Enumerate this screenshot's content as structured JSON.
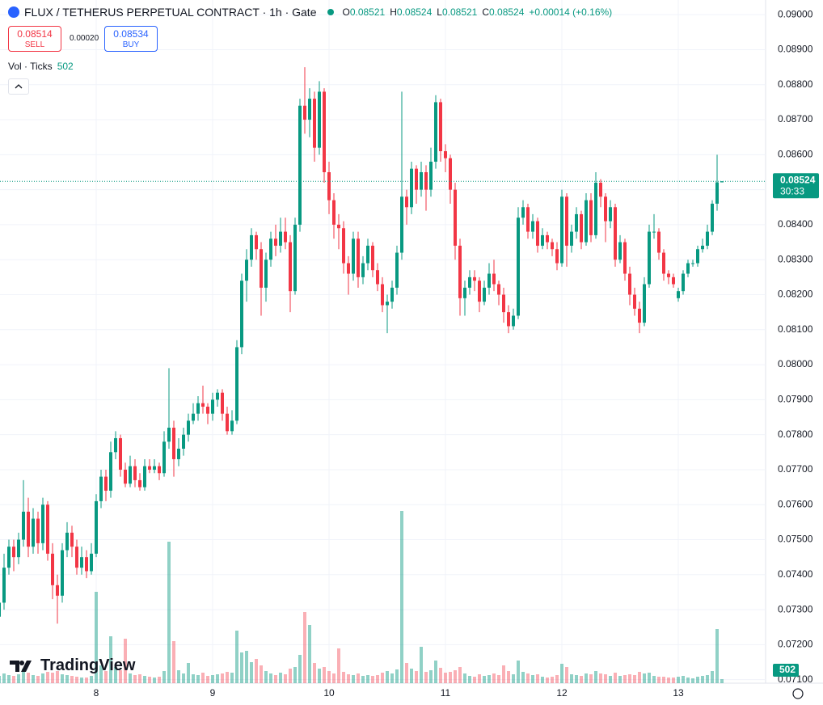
{
  "chart_data": {
    "type": "candlestick",
    "title": "FLUX / TETHERUS PERPETUAL CONTRACT · 1h · Gate",
    "ohlc_labels": [
      "O",
      "H",
      "L",
      "C"
    ],
    "change": "+0.00014 (+0.16%)",
    "sell": {
      "price": 0.08514,
      "label": "SELL"
    },
    "spread": "0.00020",
    "buy": {
      "price": 0.08534,
      "label": "BUY"
    },
    "volume_label": "Vol · Ticks",
    "countdown": "30:33",
    "brand": "TradingView",
    "colors": {
      "up": "#089981",
      "down": "#f23645",
      "up_volume": "rgba(8,153,129,0.45)",
      "down_volume": "rgba(242,54,69,0.4)"
    },
    "grid": true,
    "ylim": [
      0.0709,
      0.09042
    ],
    "yticks": [
      {
        "value": 0.071,
        "label": "0.07100"
      },
      {
        "value": 0.072,
        "label": "0.07200"
      },
      {
        "value": 0.073,
        "label": "0.07300"
      },
      {
        "value": 0.074,
        "label": "0.07400"
      },
      {
        "value": 0.075,
        "label": "0.07500"
      },
      {
        "value": 0.076,
        "label": "0.07600"
      },
      {
        "value": 0.077,
        "label": "0.07700"
      },
      {
        "value": 0.078,
        "label": "0.07800"
      },
      {
        "value": 0.079,
        "label": "0.07900"
      },
      {
        "value": 0.08,
        "label": "0.08000"
      },
      {
        "value": 0.081,
        "label": "0.08100"
      },
      {
        "value": 0.082,
        "label": "0.08200"
      },
      {
        "value": 0.083,
        "label": "0.08300"
      },
      {
        "value": 0.084,
        "label": "0.08400"
      },
      {
        "value": 0.085,
        "label": "0.08500"
      },
      {
        "value": 0.086,
        "label": "0.08600"
      },
      {
        "value": 0.087,
        "label": "0.08700"
      },
      {
        "value": 0.088,
        "label": "0.08800"
      },
      {
        "value": 0.089,
        "label": "0.08900"
      },
      {
        "value": 0.09,
        "label": "0.09000"
      }
    ],
    "xticks": [
      {
        "value": 20,
        "label": "8"
      },
      {
        "value": 44,
        "label": "9"
      },
      {
        "value": 68,
        "label": "10"
      },
      {
        "value": 92,
        "label": "11"
      },
      {
        "value": 116,
        "label": "12"
      },
      {
        "value": 140,
        "label": "13"
      }
    ],
    "candles": [
      [
        0.0728,
        0.0735,
        0.0725,
        0.0732,
        900
      ],
      [
        0.0732,
        0.0746,
        0.073,
        0.0742,
        1200
      ],
      [
        0.0742,
        0.075,
        0.074,
        0.0748,
        1000
      ],
      [
        0.0748,
        0.075,
        0.0741,
        0.0745,
        900
      ],
      [
        0.0745,
        0.0752,
        0.0743,
        0.075,
        1100
      ],
      [
        0.075,
        0.0767,
        0.0748,
        0.0758,
        1800
      ],
      [
        0.0758,
        0.0762,
        0.0745,
        0.0748,
        1300
      ],
      [
        0.0748,
        0.0759,
        0.0746,
        0.0756,
        1000
      ],
      [
        0.0756,
        0.0758,
        0.0746,
        0.0749,
        900
      ],
      [
        0.0749,
        0.0762,
        0.0747,
        0.076,
        1200
      ],
      [
        0.076,
        0.0761,
        0.0744,
        0.0746,
        1400
      ],
      [
        0.0746,
        0.0749,
        0.0733,
        0.0737,
        1300
      ],
      [
        0.0737,
        0.074,
        0.0726,
        0.0734,
        1500
      ],
      [
        0.0734,
        0.0749,
        0.0732,
        0.0747,
        1100
      ],
      [
        0.0747,
        0.0755,
        0.0745,
        0.0752,
        1000
      ],
      [
        0.0752,
        0.0754,
        0.0745,
        0.0748,
        900
      ],
      [
        0.0748,
        0.075,
        0.074,
        0.0742,
        800
      ],
      [
        0.0742,
        0.0748,
        0.074,
        0.0745,
        700
      ],
      [
        0.0745,
        0.0747,
        0.0739,
        0.0741,
        700
      ],
      [
        0.0741,
        0.0749,
        0.074,
        0.0746,
        900
      ],
      [
        0.0746,
        0.0763,
        0.0745,
        0.0761,
        11300
      ],
      [
        0.0761,
        0.077,
        0.0759,
        0.0768,
        2200
      ],
      [
        0.0768,
        0.077,
        0.0761,
        0.0764,
        1500
      ],
      [
        0.0764,
        0.0778,
        0.0762,
        0.0775,
        5800
      ],
      [
        0.0775,
        0.0781,
        0.0773,
        0.0779,
        2000
      ],
      [
        0.0779,
        0.078,
        0.0768,
        0.077,
        1600
      ],
      [
        0.077,
        0.0772,
        0.0765,
        0.0766,
        5500
      ],
      [
        0.0766,
        0.0774,
        0.0765,
        0.0771,
        1200
      ],
      [
        0.0771,
        0.0773,
        0.0765,
        0.0767,
        1000
      ],
      [
        0.0767,
        0.0769,
        0.0764,
        0.0765,
        1100
      ],
      [
        0.0765,
        0.0773,
        0.0764,
        0.0771,
        900
      ],
      [
        0.0771,
        0.0773,
        0.0769,
        0.077,
        800
      ],
      [
        0.077,
        0.0773,
        0.0769,
        0.0771,
        700
      ],
      [
        0.0771,
        0.0772,
        0.0767,
        0.0769,
        800
      ],
      [
        0.0769,
        0.0781,
        0.0768,
        0.0778,
        1500
      ],
      [
        0.0778,
        0.0799,
        0.0776,
        0.0782,
        17500
      ],
      [
        0.0782,
        0.0784,
        0.0768,
        0.0773,
        5200
      ],
      [
        0.0773,
        0.0779,
        0.0771,
        0.0776,
        1600
      ],
      [
        0.0776,
        0.0782,
        0.0774,
        0.078,
        1200
      ],
      [
        0.078,
        0.0786,
        0.0778,
        0.0784,
        2500
      ],
      [
        0.0784,
        0.0789,
        0.0783,
        0.0786,
        1100
      ],
      [
        0.0786,
        0.0791,
        0.0784,
        0.0789,
        1000
      ],
      [
        0.0789,
        0.0794,
        0.0786,
        0.0788,
        1300
      ],
      [
        0.0788,
        0.0789,
        0.0783,
        0.0786,
        900
      ],
      [
        0.0786,
        0.0792,
        0.0784,
        0.079,
        1000
      ],
      [
        0.079,
        0.0793,
        0.0788,
        0.0792,
        1100
      ],
      [
        0.0792,
        0.0793,
        0.0784,
        0.0786,
        1200
      ],
      [
        0.0786,
        0.0788,
        0.078,
        0.0781,
        1400
      ],
      [
        0.0781,
        0.0787,
        0.078,
        0.0784,
        1300
      ],
      [
        0.0784,
        0.0807,
        0.0783,
        0.0805,
        6500
      ],
      [
        0.0805,
        0.0826,
        0.0803,
        0.0824,
        3800
      ],
      [
        0.0824,
        0.0833,
        0.0818,
        0.083,
        4000
      ],
      [
        0.083,
        0.0839,
        0.0828,
        0.0837,
        2600
      ],
      [
        0.0837,
        0.0838,
        0.083,
        0.0833,
        3000
      ],
      [
        0.0833,
        0.0835,
        0.0814,
        0.0822,
        2200
      ],
      [
        0.0822,
        0.0832,
        0.0818,
        0.083,
        1500
      ],
      [
        0.083,
        0.0838,
        0.0828,
        0.0836,
        1200
      ],
      [
        0.0836,
        0.084,
        0.0831,
        0.0834,
        1000
      ],
      [
        0.0834,
        0.0842,
        0.0832,
        0.0838,
        1300
      ],
      [
        0.0838,
        0.0842,
        0.0833,
        0.0835,
        1100
      ],
      [
        0.0835,
        0.0837,
        0.0815,
        0.0821,
        1800
      ],
      [
        0.0821,
        0.0842,
        0.082,
        0.084,
        2000
      ],
      [
        0.084,
        0.0876,
        0.0838,
        0.0874,
        3500
      ],
      [
        0.0874,
        0.0885,
        0.0866,
        0.087,
        8800
      ],
      [
        0.087,
        0.0879,
        0.0865,
        0.0876,
        7200
      ],
      [
        0.0876,
        0.0878,
        0.0858,
        0.0862,
        2500
      ],
      [
        0.0862,
        0.0881,
        0.086,
        0.0878,
        1800
      ],
      [
        0.0878,
        0.0879,
        0.0852,
        0.0855,
        2000
      ],
      [
        0.0855,
        0.0858,
        0.0843,
        0.0847,
        1500
      ],
      [
        0.0847,
        0.0849,
        0.0836,
        0.084,
        1200
      ],
      [
        0.084,
        0.0843,
        0.0833,
        0.0839,
        4300
      ],
      [
        0.0839,
        0.0841,
        0.0826,
        0.0829,
        1400
      ],
      [
        0.0829,
        0.0831,
        0.082,
        0.0826,
        1100
      ],
      [
        0.0826,
        0.0838,
        0.0824,
        0.0836,
        1000
      ],
      [
        0.0836,
        0.0838,
        0.0822,
        0.0825,
        1200
      ],
      [
        0.0825,
        0.0831,
        0.0823,
        0.0829,
        900
      ],
      [
        0.0829,
        0.0836,
        0.0827,
        0.0834,
        1000
      ],
      [
        0.0834,
        0.0835,
        0.0825,
        0.0827,
        900
      ],
      [
        0.0827,
        0.0829,
        0.0821,
        0.0823,
        1000
      ],
      [
        0.0823,
        0.0825,
        0.0815,
        0.0817,
        1300
      ],
      [
        0.0817,
        0.082,
        0.0809,
        0.0818,
        1500
      ],
      [
        0.0818,
        0.0824,
        0.0816,
        0.0822,
        1200
      ],
      [
        0.0822,
        0.0834,
        0.082,
        0.0832,
        1700
      ],
      [
        0.0832,
        0.0878,
        0.083,
        0.0848,
        21300
      ],
      [
        0.0848,
        0.085,
        0.084,
        0.0845,
        2500
      ],
      [
        0.0845,
        0.0858,
        0.0843,
        0.0856,
        1800
      ],
      [
        0.0856,
        0.0857,
        0.0846,
        0.085,
        1500
      ],
      [
        0.085,
        0.0858,
        0.0848,
        0.0855,
        4500
      ],
      [
        0.0855,
        0.0857,
        0.0844,
        0.085,
        1400
      ],
      [
        0.085,
        0.0862,
        0.0848,
        0.0858,
        1600
      ],
      [
        0.0858,
        0.0877,
        0.0856,
        0.0875,
        2800
      ],
      [
        0.0875,
        0.0876,
        0.0858,
        0.0861,
        1900
      ],
      [
        0.0861,
        0.0863,
        0.0855,
        0.0859,
        1300
      ],
      [
        0.0859,
        0.086,
        0.0846,
        0.085,
        1400
      ],
      [
        0.085,
        0.0852,
        0.083,
        0.0834,
        1600
      ],
      [
        0.0834,
        0.0836,
        0.0814,
        0.0819,
        2000
      ],
      [
        0.0819,
        0.0824,
        0.0814,
        0.0822,
        1200
      ],
      [
        0.0822,
        0.0827,
        0.082,
        0.0825,
        900
      ],
      [
        0.0825,
        0.0827,
        0.0821,
        0.0824,
        800
      ],
      [
        0.0824,
        0.0825,
        0.0815,
        0.0818,
        1100
      ],
      [
        0.0818,
        0.0824,
        0.0817,
        0.0822,
        900
      ],
      [
        0.0822,
        0.0829,
        0.082,
        0.0826,
        1000
      ],
      [
        0.0826,
        0.083,
        0.0821,
        0.0823,
        1200
      ],
      [
        0.0823,
        0.0824,
        0.0817,
        0.082,
        1000
      ],
      [
        0.082,
        0.0822,
        0.0812,
        0.0815,
        2200
      ],
      [
        0.0815,
        0.0817,
        0.0809,
        0.0811,
        1500
      ],
      [
        0.0811,
        0.0816,
        0.081,
        0.0814,
        1100
      ],
      [
        0.0814,
        0.0845,
        0.0813,
        0.0842,
        2800
      ],
      [
        0.0842,
        0.0847,
        0.084,
        0.0845,
        1400
      ],
      [
        0.0845,
        0.0846,
        0.0836,
        0.0838,
        1200
      ],
      [
        0.0838,
        0.0843,
        0.0836,
        0.0841,
        1000
      ],
      [
        0.0841,
        0.0842,
        0.0832,
        0.0834,
        1100
      ],
      [
        0.0834,
        0.0839,
        0.0833,
        0.0837,
        800
      ],
      [
        0.0837,
        0.0838,
        0.0833,
        0.0835,
        700
      ],
      [
        0.0835,
        0.0836,
        0.0831,
        0.0833,
        800
      ],
      [
        0.0833,
        0.0835,
        0.0827,
        0.0829,
        1000
      ],
      [
        0.0829,
        0.085,
        0.0828,
        0.0848,
        2400
      ],
      [
        0.0848,
        0.0849,
        0.0828,
        0.0834,
        2000
      ],
      [
        0.0834,
        0.084,
        0.0832,
        0.0838,
        1100
      ],
      [
        0.0838,
        0.0845,
        0.0836,
        0.0843,
        1000
      ],
      [
        0.0843,
        0.0844,
        0.0833,
        0.0835,
        900
      ],
      [
        0.0835,
        0.0849,
        0.0834,
        0.0847,
        1200
      ],
      [
        0.0847,
        0.0849,
        0.0835,
        0.0837,
        1100
      ],
      [
        0.0837,
        0.0855,
        0.0836,
        0.0852,
        1500
      ],
      [
        0.0852,
        0.0853,
        0.0845,
        0.0848,
        1200
      ],
      [
        0.0848,
        0.0849,
        0.0835,
        0.0841,
        1100
      ],
      [
        0.0841,
        0.0847,
        0.0839,
        0.0845,
        900
      ],
      [
        0.0845,
        0.0846,
        0.0828,
        0.083,
        1300
      ],
      [
        0.083,
        0.0837,
        0.0829,
        0.0835,
        900
      ],
      [
        0.0835,
        0.0836,
        0.0824,
        0.0826,
        1000
      ],
      [
        0.0826,
        0.0828,
        0.0817,
        0.082,
        1100
      ],
      [
        0.082,
        0.0822,
        0.0814,
        0.0816,
        1000
      ],
      [
        0.0816,
        0.0818,
        0.0809,
        0.0812,
        1400
      ],
      [
        0.0812,
        0.0825,
        0.0811,
        0.0823,
        1200
      ],
      [
        0.0823,
        0.084,
        0.0822,
        0.0838,
        1300
      ],
      [
        0.0838,
        0.0843,
        0.0836,
        0.0838,
        900
      ],
      [
        0.0838,
        0.0839,
        0.083,
        0.0832,
        800
      ],
      [
        0.0832,
        0.0833,
        0.0824,
        0.0826,
        800
      ],
      [
        0.0826,
        0.0827,
        0.0823,
        0.0825,
        700
      ],
      [
        0.0825,
        0.0826,
        0.0822,
        0.0823,
        700
      ],
      [
        0.0819,
        0.0822,
        0.0818,
        0.0821,
        800
      ],
      [
        0.0821,
        0.0827,
        0.082,
        0.0826,
        900
      ],
      [
        0.0826,
        0.083,
        0.0825,
        0.0829,
        700
      ],
      [
        0.0829,
        0.083,
        0.0828,
        0.0829,
        600
      ],
      [
        0.0829,
        0.0834,
        0.0828,
        0.0833,
        800
      ],
      [
        0.0833,
        0.0836,
        0.0832,
        0.0834,
        900
      ],
      [
        0.0834,
        0.084,
        0.0833,
        0.0838,
        1000
      ],
      [
        0.0838,
        0.0847,
        0.0837,
        0.0846,
        1500
      ],
      [
        0.0846,
        0.086,
        0.0844,
        0.08521,
        6700
      ],
      [
        0.08521,
        0.08524,
        0.08521,
        0.08524,
        502
      ]
    ]
  }
}
